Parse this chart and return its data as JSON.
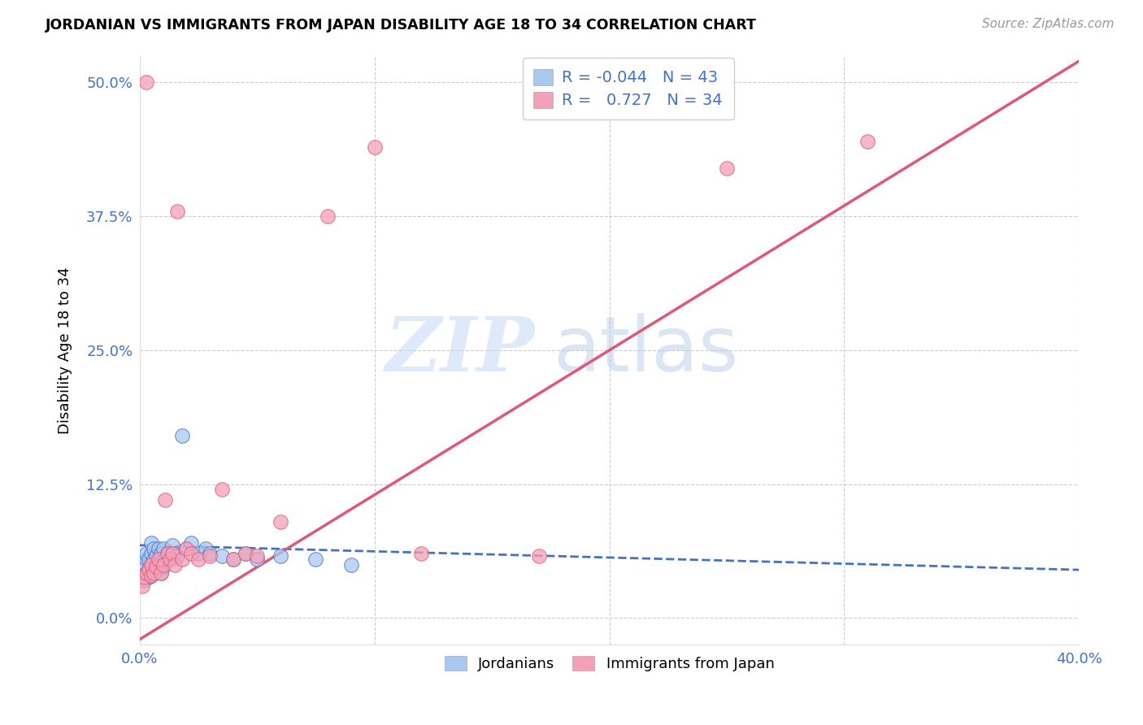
{
  "title": "JORDANIAN VS IMMIGRANTS FROM JAPAN DISABILITY AGE 18 TO 34 CORRELATION CHART",
  "source": "Source: ZipAtlas.com",
  "ylabel": "Disability Age 18 to 34",
  "xlim": [
    0.0,
    0.4
  ],
  "ylim": [
    -0.025,
    0.525
  ],
  "yticks": [
    0.0,
    0.125,
    0.25,
    0.375,
    0.5
  ],
  "ytick_labels": [
    "0.0%",
    "12.5%",
    "25.0%",
    "37.5%",
    "50.0%"
  ],
  "xticks": [
    0.0,
    0.1,
    0.2,
    0.3,
    0.4
  ],
  "xtick_labels": [
    "0.0%",
    "",
    "",
    "",
    "40.0%"
  ],
  "legend_labels": [
    "Jordanians",
    "Immigrants from Japan"
  ],
  "R_jordan": -0.044,
  "N_jordan": 43,
  "R_japan": 0.727,
  "N_japan": 34,
  "color_jordan": "#a8c8f0",
  "color_japan": "#f4a0b8",
  "color_trend_jordan": "#4472c4",
  "color_trend_japan": "#e05878",
  "watermark_zip": "ZIP",
  "watermark_atlas": "atlas",
  "background_color": "#ffffff",
  "jordan_x": [
    0.001,
    0.002,
    0.002,
    0.003,
    0.003,
    0.003,
    0.004,
    0.004,
    0.004,
    0.005,
    0.005,
    0.005,
    0.005,
    0.006,
    0.006,
    0.006,
    0.007,
    0.007,
    0.008,
    0.008,
    0.009,
    0.009,
    0.01,
    0.01,
    0.011,
    0.012,
    0.013,
    0.014,
    0.015,
    0.016,
    0.018,
    0.02,
    0.022,
    0.025,
    0.028,
    0.03,
    0.035,
    0.04,
    0.045,
    0.05,
    0.06,
    0.075,
    0.09
  ],
  "jordan_y": [
    0.04,
    0.035,
    0.05,
    0.042,
    0.055,
    0.06,
    0.038,
    0.045,
    0.055,
    0.04,
    0.05,
    0.06,
    0.07,
    0.042,
    0.055,
    0.065,
    0.045,
    0.058,
    0.05,
    0.065,
    0.042,
    0.06,
    0.048,
    0.065,
    0.055,
    0.06,
    0.055,
    0.068,
    0.06,
    0.058,
    0.17,
    0.065,
    0.07,
    0.06,
    0.065,
    0.06,
    0.058,
    0.055,
    0.06,
    0.055,
    0.058,
    0.055,
    0.05
  ],
  "japan_x": [
    0.001,
    0.002,
    0.003,
    0.003,
    0.004,
    0.005,
    0.005,
    0.006,
    0.007,
    0.008,
    0.009,
    0.01,
    0.011,
    0.012,
    0.013,
    0.014,
    0.015,
    0.016,
    0.018,
    0.02,
    0.022,
    0.025,
    0.03,
    0.035,
    0.04,
    0.045,
    0.05,
    0.06,
    0.08,
    0.1,
    0.12,
    0.17,
    0.25,
    0.31
  ],
  "japan_y": [
    0.03,
    0.038,
    0.042,
    0.5,
    0.045,
    0.04,
    0.05,
    0.042,
    0.048,
    0.055,
    0.042,
    0.05,
    0.11,
    0.06,
    0.055,
    0.06,
    0.05,
    0.38,
    0.055,
    0.065,
    0.06,
    0.055,
    0.058,
    0.12,
    0.055,
    0.06,
    0.058,
    0.09,
    0.375,
    0.44,
    0.06,
    0.058,
    0.42,
    0.445
  ],
  "japan_trend_x": [
    0.0,
    0.4
  ],
  "japan_trend_y": [
    -0.02,
    0.52
  ],
  "jordan_trend_x": [
    0.0,
    0.4
  ],
  "jordan_trend_y": [
    0.068,
    0.045
  ]
}
